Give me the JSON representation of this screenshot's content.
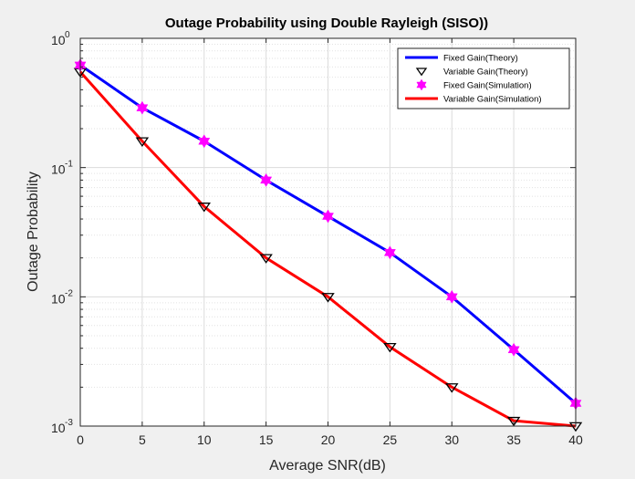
{
  "chart_data": {
    "type": "line",
    "title": "Outage Probability using Double Rayleigh (SISO))",
    "xlabel": "Average SNR(dB)",
    "ylabel": "Outage Probability",
    "xlim": [
      0,
      40
    ],
    "ylim": [
      0.001,
      1
    ],
    "yscale": "log",
    "grid": true,
    "legend_position": "top-right",
    "x": [
      0,
      5,
      10,
      15,
      20,
      25,
      30,
      35,
      40
    ],
    "x_tick_labels": [
      "0",
      "5",
      "10",
      "15",
      "20",
      "25",
      "30",
      "35",
      "40"
    ],
    "y_ticks": [
      {
        "value": 0.001,
        "base": "10",
        "exp": "-3"
      },
      {
        "value": 0.01,
        "base": "10",
        "exp": "-2"
      },
      {
        "value": 0.1,
        "base": "10",
        "exp": "-1"
      },
      {
        "value": 1,
        "base": "10",
        "exp": "0"
      }
    ],
    "series": [
      {
        "name": "Fixed Gain(Theory)",
        "style": "line",
        "color": "#0000ff",
        "values": [
          0.62,
          0.29,
          0.16,
          0.08,
          0.042,
          0.022,
          0.01,
          0.0039,
          0.0015
        ]
      },
      {
        "name": "Variable Gain(Theory)",
        "style": "marker-triangle-down",
        "color": "#000000",
        "values": [
          0.55,
          0.16,
          0.05,
          0.02,
          0.01,
          0.0041,
          0.002,
          0.0011,
          0.001
        ]
      },
      {
        "name": "Fixed Gain(Simulation)",
        "style": "marker-hexagram",
        "color": "#ff00ff",
        "values": [
          0.62,
          0.29,
          0.16,
          0.08,
          0.042,
          0.022,
          0.01,
          0.0039,
          0.0015
        ]
      },
      {
        "name": "Variable Gain(Simulation)",
        "style": "line",
        "color": "#ff0000",
        "values": [
          0.55,
          0.16,
          0.05,
          0.02,
          0.01,
          0.0041,
          0.002,
          0.0011,
          0.001
        ]
      }
    ]
  }
}
